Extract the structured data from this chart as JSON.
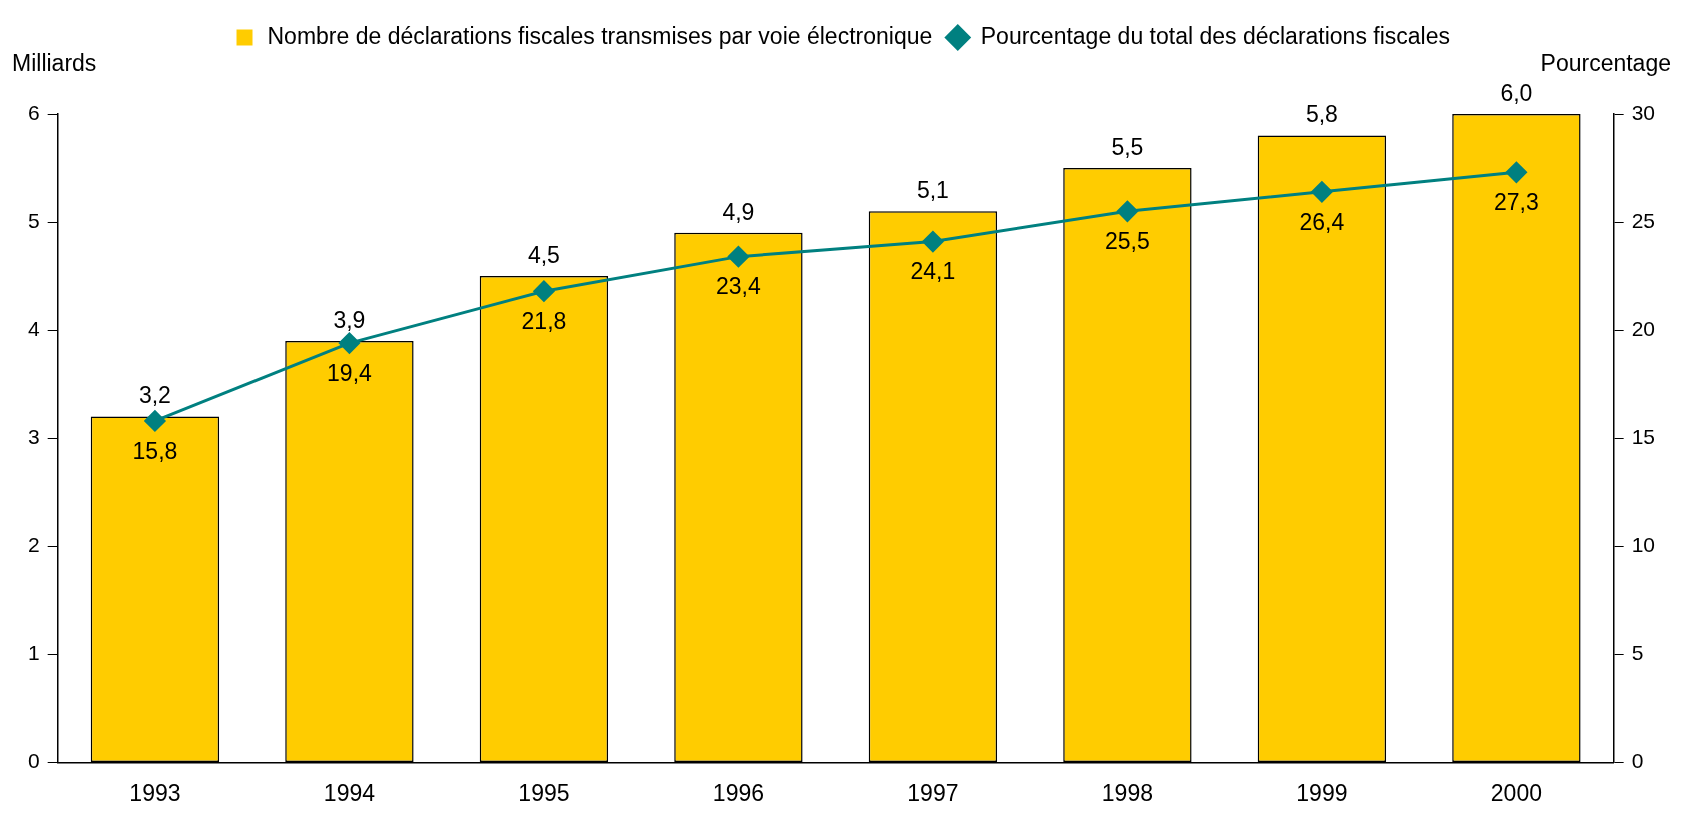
{
  "chart_data": {
    "type": "bar",
    "categories": [
      "1993",
      "1994",
      "1995",
      "1996",
      "1997",
      "1998",
      "1999",
      "2000"
    ],
    "ylabel": "Milliards",
    "y2label": "Pourcentage",
    "series": [
      {
        "name": "Nombre de déclarations fiscales transmises par voie électronique",
        "color": "#ffcc00",
        "values": [
          3.2,
          3.9,
          4.5,
          4.9,
          5.1,
          5.5,
          5.8,
          6.0
        ],
        "value_labels": [
          "3,2",
          "3,9",
          "4,5",
          "4,9",
          "5,1",
          "5,5",
          "5,8",
          "6,0"
        ]
      },
      {
        "name": "Pourcentage du total des déclarations fiscales",
        "type": "line",
        "axis": "y2",
        "color": "#008080",
        "marker": "diamond",
        "values": [
          15.8,
          19.4,
          21.8,
          23.4,
          24.1,
          25.5,
          26.4,
          27.3
        ],
        "value_labels": [
          "15,8",
          "19,4",
          "21,8",
          "23,4",
          "24,1",
          "25,5",
          "26,4",
          "27,3"
        ]
      }
    ],
    "ylim": [
      0,
      6
    ],
    "yticks": [
      0,
      1,
      2,
      3,
      4,
      5,
      6
    ],
    "y2lim": [
      0,
      30
    ],
    "y2ticks": [
      0,
      5,
      10,
      15,
      20,
      25,
      30
    ],
    "grid": false,
    "legend": "top"
  }
}
